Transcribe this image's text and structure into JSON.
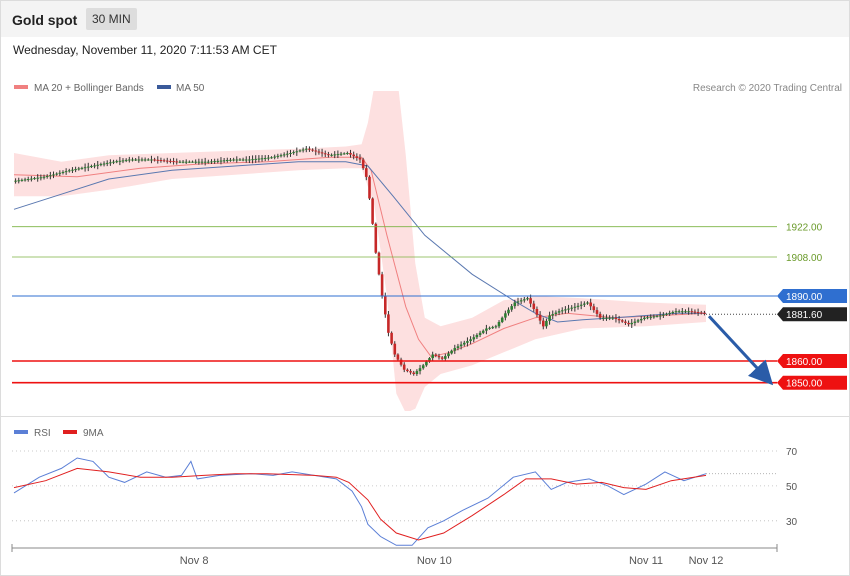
{
  "header": {
    "title": "Gold spot",
    "timeframe": "30 MIN",
    "timestamp": "Wednesday, November 11, 2020 7:11:53 AM CET"
  },
  "legend": {
    "items": [
      {
        "label": "MA 20 + Bollinger Bands",
        "color": "#f08080"
      },
      {
        "label": "MA 50",
        "color": "#3a5a9a"
      }
    ],
    "credit": "Research © 2020 Trading Central"
  },
  "colors": {
    "up_candle": "#2e7d32",
    "down_candle": "#c62828",
    "support": "#ee1111",
    "resistance": "#7cb342",
    "pivot": "#2f6fd0",
    "current": "#222222",
    "arrow": "#2a5ca8",
    "bollinger_fill": "#fde0e0",
    "ma20": "#f08080",
    "ma50": "#5a78b0",
    "rsi": "#5b7fd6",
    "rsi_ma": "#e02020"
  },
  "chart_data": [
    {
      "type": "candlestick",
      "title": "Gold spot",
      "ylim": [
        1836,
        1980
      ],
      "x_tick_labels": [
        "Nov 8",
        "Nov 10",
        "Nov 11",
        "Nov 12"
      ],
      "levels": [
        {
          "label": "1922.00",
          "value": 1922.0,
          "kind": "resistance"
        },
        {
          "label": "1908.00",
          "value": 1908.0,
          "kind": "resistance"
        },
        {
          "label": "1890.00",
          "value": 1890.0,
          "kind": "pivot"
        },
        {
          "label": "1881.60",
          "value": 1881.6,
          "kind": "current"
        },
        {
          "label": "1860.00",
          "value": 1860.0,
          "kind": "support"
        },
        {
          "label": "1850.00",
          "value": 1850.0,
          "kind": "support"
        }
      ],
      "price_path": [
        [
          0,
          1943
        ],
        [
          10,
          1945
        ],
        [
          18,
          1948
        ],
        [
          25,
          1950
        ],
        [
          32,
          1952
        ],
        [
          37,
          1953
        ],
        [
          44,
          1953
        ],
        [
          52,
          1952
        ],
        [
          62,
          1952
        ],
        [
          70,
          1953
        ],
        [
          75,
          1953
        ],
        [
          82,
          1954
        ],
        [
          88,
          1956
        ],
        [
          93,
          1958
        ],
        [
          100,
          1955
        ],
        [
          106,
          1956
        ],
        [
          110,
          1953
        ],
        [
          112,
          1945
        ],
        [
          113.5,
          1930
        ],
        [
          115,
          1910
        ],
        [
          117,
          1890
        ],
        [
          119,
          1873
        ],
        [
          121,
          1863
        ],
        [
          124,
          1856
        ],
        [
          127,
          1854
        ],
        [
          130,
          1858
        ],
        [
          133,
          1863
        ],
        [
          136,
          1861
        ],
        [
          140,
          1866
        ],
        [
          145,
          1870
        ],
        [
          150,
          1875
        ],
        [
          153,
          1876
        ],
        [
          156,
          1882
        ],
        [
          159,
          1887
        ],
        [
          163,
          1889
        ],
        [
          165,
          1884
        ],
        [
          168,
          1876
        ],
        [
          170,
          1881
        ],
        [
          173,
          1883
        ],
        [
          178,
          1885
        ],
        [
          182,
          1887
        ],
        [
          186,
          1880
        ],
        [
          190,
          1880
        ],
        [
          195,
          1877
        ],
        [
          200,
          1880
        ],
        [
          205,
          1881
        ],
        [
          210,
          1883
        ],
        [
          214,
          1883
        ],
        [
          219,
          1882
        ]
      ],
      "ma50_path": [
        [
          0,
          1930
        ],
        [
          15,
          1937
        ],
        [
          30,
          1944
        ],
        [
          50,
          1948
        ],
        [
          70,
          1950
        ],
        [
          90,
          1952
        ],
        [
          105,
          1952
        ],
        [
          112,
          1950
        ],
        [
          120,
          1936
        ],
        [
          130,
          1918
        ],
        [
          145,
          1900
        ],
        [
          158,
          1888
        ],
        [
          165,
          1882
        ],
        [
          172,
          1878
        ],
        [
          180,
          1879
        ],
        [
          190,
          1880
        ],
        [
          200,
          1881
        ],
        [
          210,
          1882
        ],
        [
          219,
          1882
        ]
      ],
      "bollinger": {
        "ma20": [
          [
            0,
            1946
          ],
          [
            20,
            1945
          ],
          [
            40,
            1949
          ],
          [
            60,
            1951
          ],
          [
            80,
            1952
          ],
          [
            100,
            1954
          ],
          [
            110,
            1954
          ],
          [
            113,
            1948
          ],
          [
            118,
            1918
          ],
          [
            124,
            1885
          ],
          [
            128,
            1870
          ],
          [
            132,
            1862
          ],
          [
            138,
            1864
          ],
          [
            145,
            1868
          ],
          [
            155,
            1875
          ],
          [
            165,
            1880
          ],
          [
            175,
            1882
          ],
          [
            190,
            1880
          ],
          [
            205,
            1881
          ],
          [
            219,
            1882
          ]
        ],
        "upper": [
          [
            0,
            1956
          ],
          [
            15,
            1952
          ],
          [
            30,
            1955
          ],
          [
            50,
            1956
          ],
          [
            70,
            1957
          ],
          [
            90,
            1958
          ],
          [
            105,
            1959
          ],
          [
            110,
            1960
          ],
          [
            112,
            1970
          ],
          [
            115,
            1995
          ],
          [
            118,
            2014
          ],
          [
            121,
            1995
          ],
          [
            124,
            1955
          ],
          [
            127,
            1905
          ],
          [
            130,
            1880
          ],
          [
            135,
            1876
          ],
          [
            145,
            1880
          ],
          [
            155,
            1888
          ],
          [
            165,
            1890
          ],
          [
            180,
            1889
          ],
          [
            200,
            1887
          ],
          [
            219,
            1886
          ]
        ],
        "lower": [
          [
            0,
            1936
          ],
          [
            15,
            1936
          ],
          [
            30,
            1939
          ],
          [
            50,
            1944
          ],
          [
            70,
            1946
          ],
          [
            90,
            1948
          ],
          [
            105,
            1949
          ],
          [
            110,
            1949
          ],
          [
            114,
            1932
          ],
          [
            118,
            1890
          ],
          [
            121,
            1845
          ],
          [
            124,
            1836
          ],
          [
            127,
            1838
          ],
          [
            130,
            1848
          ],
          [
            135,
            1854
          ],
          [
            145,
            1858
          ],
          [
            155,
            1864
          ],
          [
            165,
            1870
          ],
          [
            180,
            1875
          ],
          [
            200,
            1876
          ],
          [
            219,
            1878
          ]
        ]
      },
      "x_ticks_index": [
        57,
        133,
        200,
        219
      ]
    },
    {
      "type": "line",
      "title": "RSI",
      "series": [
        {
          "name": "RSI",
          "color": "#5b7fd6"
        },
        {
          "name": "9MA",
          "color": "#e02020"
        }
      ],
      "ylim": [
        15,
        78
      ],
      "y_ticks": [
        30,
        50,
        70
      ],
      "rsi": [
        [
          0,
          46
        ],
        [
          8,
          55
        ],
        [
          15,
          60
        ],
        [
          20,
          66
        ],
        [
          25,
          64
        ],
        [
          30,
          55
        ],
        [
          35,
          52
        ],
        [
          42,
          58
        ],
        [
          48,
          55
        ],
        [
          53,
          56
        ],
        [
          56,
          64
        ],
        [
          58,
          54
        ],
        [
          65,
          56
        ],
        [
          75,
          57
        ],
        [
          82,
          56
        ],
        [
          88,
          58
        ],
        [
          95,
          56
        ],
        [
          102,
          54
        ],
        [
          107,
          47
        ],
        [
          110,
          38
        ],
        [
          112,
          28
        ],
        [
          116,
          21
        ],
        [
          121,
          16
        ],
        [
          126,
          16
        ],
        [
          131,
          26
        ],
        [
          136,
          30
        ],
        [
          142,
          36
        ],
        [
          150,
          43
        ],
        [
          158,
          55
        ],
        [
          165,
          58
        ],
        [
          170,
          48
        ],
        [
          175,
          52
        ],
        [
          182,
          54
        ],
        [
          188,
          50
        ],
        [
          193,
          45
        ],
        [
          200,
          51
        ],
        [
          206,
          58
        ],
        [
          212,
          53
        ],
        [
          219,
          57
        ]
      ],
      "ma9": [
        [
          0,
          49
        ],
        [
          10,
          53
        ],
        [
          20,
          60
        ],
        [
          30,
          58
        ],
        [
          40,
          55
        ],
        [
          50,
          55
        ],
        [
          60,
          56
        ],
        [
          70,
          57
        ],
        [
          80,
          57
        ],
        [
          95,
          56
        ],
        [
          102,
          55
        ],
        [
          106,
          52
        ],
        [
          112,
          42
        ],
        [
          116,
          31
        ],
        [
          121,
          23
        ],
        [
          128,
          19
        ],
        [
          136,
          23
        ],
        [
          145,
          33
        ],
        [
          155,
          45
        ],
        [
          162,
          54
        ],
        [
          170,
          54
        ],
        [
          178,
          51
        ],
        [
          186,
          52
        ],
        [
          193,
          49
        ],
        [
          200,
          48
        ],
        [
          208,
          53
        ],
        [
          219,
          56
        ]
      ]
    }
  ],
  "rsi_legend": [
    {
      "label": "RSI",
      "color": "#5b7fd6"
    },
    {
      "label": "9MA",
      "color": "#e02020"
    }
  ]
}
